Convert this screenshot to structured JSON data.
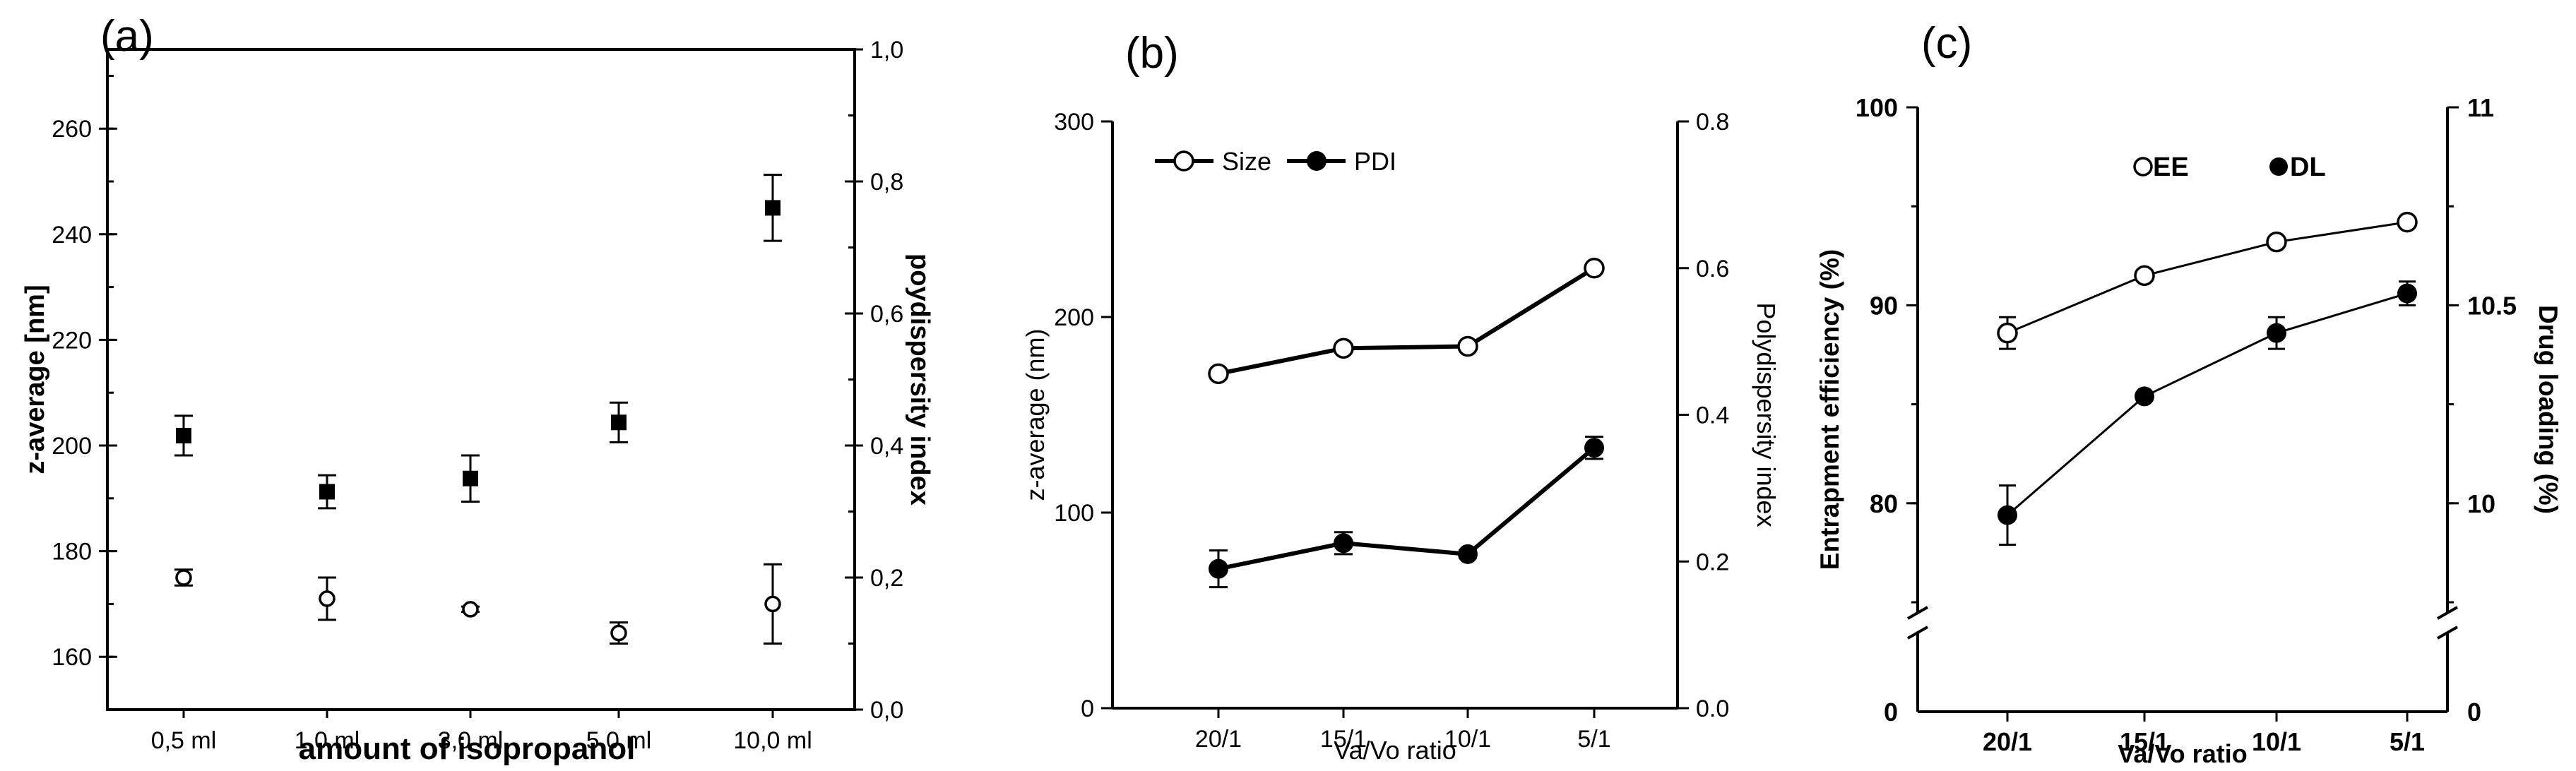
{
  "chart_data": [
    {
      "panel": "(a)",
      "type": "scatter",
      "categories": [
        "0,5 ml",
        "1,0 ml",
        "3,0 ml",
        "5,0 ml",
        "10,0 ml"
      ],
      "xlabel": "amount of isopropanol",
      "ylabel": "z-average [nm]",
      "ylabel_right": "poydispersity index",
      "ylim": [
        150,
        275
      ],
      "ylim_right": [
        0.0,
        1.0
      ],
      "yticks": [
        "160",
        "180",
        "200",
        "220",
        "240",
        "260"
      ],
      "yticks_right": [
        "0,0",
        "0,2",
        "0,4",
        "0,6",
        "0,8",
        "1,0"
      ],
      "series": [
        {
          "name": "z-average",
          "axis": "left",
          "marker": "open-circle",
          "values": [
            175,
            171,
            169,
            164.5,
            170
          ],
          "errors": [
            1.5,
            4,
            0.5,
            2,
            7.5
          ]
        },
        {
          "name": "poydispersity index",
          "axis": "right",
          "marker": "filled-square",
          "values": [
            0.415,
            0.33,
            0.35,
            0.435,
            0.76
          ],
          "errors": [
            0.03,
            0.025,
            0.035,
            0.03,
            0.05
          ]
        }
      ]
    },
    {
      "panel": "(b)",
      "type": "line",
      "categories": [
        "20/1",
        "15/1",
        "10/1",
        "5/1"
      ],
      "xlabel": "Va/Vo ratio",
      "ylabel": "z-average (nm)",
      "ylabel_right": "Polydispersity index",
      "ylim": [
        0,
        300
      ],
      "ylim_right": [
        0.0,
        0.8
      ],
      "yticks": [
        "0",
        "100",
        "200",
        "300"
      ],
      "yticks_right": [
        "0.0",
        "0.2",
        "0.4",
        "0.6",
        "0.8"
      ],
      "series": [
        {
          "name": "Size",
          "axis": "left",
          "marker": "open-circle",
          "values": [
            171,
            184,
            185,
            225
          ],
          "errors": [
            0,
            0,
            0,
            0
          ]
        },
        {
          "name": "PDI",
          "axis": "right",
          "marker": "filled-circle",
          "values": [
            0.19,
            0.225,
            0.21,
            0.355
          ],
          "errors": [
            0.025,
            0.015,
            0.005,
            0.015
          ]
        }
      ]
    },
    {
      "panel": "(c)",
      "type": "line",
      "categories": [
        "20/1",
        "15/1",
        "10/1",
        "5/1"
      ],
      "xlabel": "Va/Vo ratio",
      "ylabel": "Entrapment efficiency (%)",
      "ylabel_right": "Drug loading (%)",
      "ylim": [
        75,
        100
      ],
      "ylim_right": [
        9.75,
        11
      ],
      "yticks": [
        "80",
        "90",
        "100"
      ],
      "yticks_right": [
        "10",
        "10.5",
        "11"
      ],
      "axis_break": true,
      "axis_zero_left": "0",
      "axis_zero_right": "0",
      "series": [
        {
          "name": "EE",
          "axis": "left",
          "marker": "open-circle",
          "values": [
            88.6,
            91.5,
            93.2,
            94.2
          ],
          "errors": [
            0.8,
            0,
            0,
            0
          ]
        },
        {
          "name": "DL",
          "axis": "right",
          "marker": "filled-circle",
          "values": [
            9.97,
            10.27,
            10.43,
            10.53
          ],
          "errors": [
            0.075,
            0,
            0.04,
            0.03
          ]
        }
      ]
    }
  ]
}
